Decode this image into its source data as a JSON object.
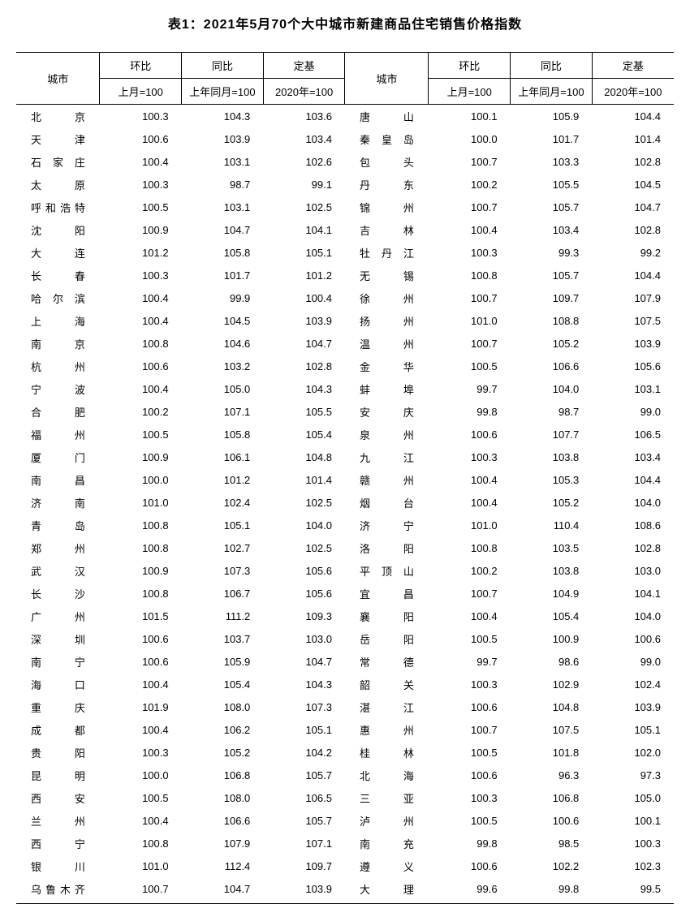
{
  "title": "表1：2021年5月70个大中城市新建商品住宅销售价格指数",
  "headers": {
    "city": "城市",
    "mom": "环比",
    "yoy": "同比",
    "base": "定基",
    "mom_sub": "上月=100",
    "yoy_sub": "上年同月=100",
    "base_sub": "2020年=100"
  },
  "style": {
    "background_color": "#ffffff",
    "text_color": "#000000",
    "border_color": "#000000",
    "title_fontsize": 16,
    "body_fontsize": 13,
    "row_padding_v": 4.5,
    "city_col_width": 92,
    "num_col_width": 90
  },
  "rows": [
    {
      "l_city": "北京",
      "l_mom": "100.3",
      "l_yoy": "104.3",
      "l_base": "103.6",
      "r_city": "唐山",
      "r_mom": "100.1",
      "r_yoy": "105.9",
      "r_base": "104.4"
    },
    {
      "l_city": "天津",
      "l_mom": "100.6",
      "l_yoy": "103.9",
      "l_base": "103.4",
      "r_city": "秦皇岛",
      "r_mom": "100.0",
      "r_yoy": "101.7",
      "r_base": "101.4"
    },
    {
      "l_city": "石家庄",
      "l_mom": "100.4",
      "l_yoy": "103.1",
      "l_base": "102.6",
      "r_city": "包头",
      "r_mom": "100.7",
      "r_yoy": "103.3",
      "r_base": "102.8"
    },
    {
      "l_city": "太原",
      "l_mom": "100.3",
      "l_yoy": "98.7",
      "l_base": "99.1",
      "r_city": "丹东",
      "r_mom": "100.2",
      "r_yoy": "105.5",
      "r_base": "104.5"
    },
    {
      "l_city": "呼和浩特",
      "l_mom": "100.5",
      "l_yoy": "103.1",
      "l_base": "102.5",
      "r_city": "锦州",
      "r_mom": "100.7",
      "r_yoy": "105.7",
      "r_base": "104.7"
    },
    {
      "l_city": "沈阳",
      "l_mom": "100.9",
      "l_yoy": "104.7",
      "l_base": "104.1",
      "r_city": "吉林",
      "r_mom": "100.4",
      "r_yoy": "103.4",
      "r_base": "102.8"
    },
    {
      "l_city": "大连",
      "l_mom": "101.2",
      "l_yoy": "105.8",
      "l_base": "105.1",
      "r_city": "牡丹江",
      "r_mom": "100.3",
      "r_yoy": "99.3",
      "r_base": "99.2"
    },
    {
      "l_city": "长春",
      "l_mom": "100.3",
      "l_yoy": "101.7",
      "l_base": "101.2",
      "r_city": "无锡",
      "r_mom": "100.8",
      "r_yoy": "105.7",
      "r_base": "104.4"
    },
    {
      "l_city": "哈尔滨",
      "l_mom": "100.4",
      "l_yoy": "99.9",
      "l_base": "100.4",
      "r_city": "徐州",
      "r_mom": "100.7",
      "r_yoy": "109.7",
      "r_base": "107.9"
    },
    {
      "l_city": "上海",
      "l_mom": "100.4",
      "l_yoy": "104.5",
      "l_base": "103.9",
      "r_city": "扬州",
      "r_mom": "101.0",
      "r_yoy": "108.8",
      "r_base": "107.5"
    },
    {
      "l_city": "南京",
      "l_mom": "100.8",
      "l_yoy": "104.6",
      "l_base": "104.7",
      "r_city": "温州",
      "r_mom": "100.7",
      "r_yoy": "105.2",
      "r_base": "103.9"
    },
    {
      "l_city": "杭州",
      "l_mom": "100.6",
      "l_yoy": "103.2",
      "l_base": "102.8",
      "r_city": "金华",
      "r_mom": "100.5",
      "r_yoy": "106.6",
      "r_base": "105.6"
    },
    {
      "l_city": "宁波",
      "l_mom": "100.4",
      "l_yoy": "105.0",
      "l_base": "104.3",
      "r_city": "蚌埠",
      "r_mom": "99.7",
      "r_yoy": "104.0",
      "r_base": "103.1"
    },
    {
      "l_city": "合肥",
      "l_mom": "100.2",
      "l_yoy": "107.1",
      "l_base": "105.5",
      "r_city": "安庆",
      "r_mom": "99.8",
      "r_yoy": "98.7",
      "r_base": "99.0"
    },
    {
      "l_city": "福州",
      "l_mom": "100.5",
      "l_yoy": "105.8",
      "l_base": "105.4",
      "r_city": "泉州",
      "r_mom": "100.6",
      "r_yoy": "107.7",
      "r_base": "106.5"
    },
    {
      "l_city": "厦门",
      "l_mom": "100.9",
      "l_yoy": "106.1",
      "l_base": "104.8",
      "r_city": "九江",
      "r_mom": "100.3",
      "r_yoy": "103.8",
      "r_base": "103.4"
    },
    {
      "l_city": "南昌",
      "l_mom": "100.0",
      "l_yoy": "101.2",
      "l_base": "101.4",
      "r_city": "赣州",
      "r_mom": "100.4",
      "r_yoy": "105.3",
      "r_base": "104.4"
    },
    {
      "l_city": "济南",
      "l_mom": "101.0",
      "l_yoy": "102.4",
      "l_base": "102.5",
      "r_city": "烟台",
      "r_mom": "100.4",
      "r_yoy": "105.2",
      "r_base": "104.0"
    },
    {
      "l_city": "青岛",
      "l_mom": "100.8",
      "l_yoy": "105.1",
      "l_base": "104.0",
      "r_city": "济宁",
      "r_mom": "101.0",
      "r_yoy": "110.4",
      "r_base": "108.6"
    },
    {
      "l_city": "郑州",
      "l_mom": "100.8",
      "l_yoy": "102.7",
      "l_base": "102.5",
      "r_city": "洛阳",
      "r_mom": "100.8",
      "r_yoy": "103.5",
      "r_base": "102.8"
    },
    {
      "l_city": "武汉",
      "l_mom": "100.9",
      "l_yoy": "107.3",
      "l_base": "105.6",
      "r_city": "平顶山",
      "r_mom": "100.2",
      "r_yoy": "103.8",
      "r_base": "103.0"
    },
    {
      "l_city": "长沙",
      "l_mom": "100.8",
      "l_yoy": "106.7",
      "l_base": "105.6",
      "r_city": "宜昌",
      "r_mom": "100.7",
      "r_yoy": "104.9",
      "r_base": "104.1"
    },
    {
      "l_city": "广州",
      "l_mom": "101.5",
      "l_yoy": "111.2",
      "l_base": "109.3",
      "r_city": "襄阳",
      "r_mom": "100.4",
      "r_yoy": "105.4",
      "r_base": "104.0"
    },
    {
      "l_city": "深圳",
      "l_mom": "100.6",
      "l_yoy": "103.7",
      "l_base": "103.0",
      "r_city": "岳阳",
      "r_mom": "100.5",
      "r_yoy": "100.9",
      "r_base": "100.6"
    },
    {
      "l_city": "南宁",
      "l_mom": "100.6",
      "l_yoy": "105.9",
      "l_base": "104.7",
      "r_city": "常德",
      "r_mom": "99.7",
      "r_yoy": "98.6",
      "r_base": "99.0"
    },
    {
      "l_city": "海口",
      "l_mom": "100.4",
      "l_yoy": "105.4",
      "l_base": "104.3",
      "r_city": "韶关",
      "r_mom": "100.3",
      "r_yoy": "102.9",
      "r_base": "102.4"
    },
    {
      "l_city": "重庆",
      "l_mom": "101.9",
      "l_yoy": "108.0",
      "l_base": "107.3",
      "r_city": "湛江",
      "r_mom": "100.6",
      "r_yoy": "104.8",
      "r_base": "103.9"
    },
    {
      "l_city": "成都",
      "l_mom": "100.4",
      "l_yoy": "106.2",
      "l_base": "105.1",
      "r_city": "惠州",
      "r_mom": "100.7",
      "r_yoy": "107.5",
      "r_base": "105.1"
    },
    {
      "l_city": "贵阳",
      "l_mom": "100.3",
      "l_yoy": "105.2",
      "l_base": "104.2",
      "r_city": "桂林",
      "r_mom": "100.5",
      "r_yoy": "101.8",
      "r_base": "102.0"
    },
    {
      "l_city": "昆明",
      "l_mom": "100.0",
      "l_yoy": "106.8",
      "l_base": "105.7",
      "r_city": "北海",
      "r_mom": "100.6",
      "r_yoy": "96.3",
      "r_base": "97.3"
    },
    {
      "l_city": "西安",
      "l_mom": "100.5",
      "l_yoy": "108.0",
      "l_base": "106.5",
      "r_city": "三亚",
      "r_mom": "100.3",
      "r_yoy": "106.8",
      "r_base": "105.0"
    },
    {
      "l_city": "兰州",
      "l_mom": "100.4",
      "l_yoy": "106.6",
      "l_base": "105.7",
      "r_city": "泸州",
      "r_mom": "100.5",
      "r_yoy": "100.6",
      "r_base": "100.1"
    },
    {
      "l_city": "西宁",
      "l_mom": "100.8",
      "l_yoy": "107.9",
      "l_base": "107.1",
      "r_city": "南充",
      "r_mom": "99.8",
      "r_yoy": "98.5",
      "r_base": "100.3"
    },
    {
      "l_city": "银川",
      "l_mom": "101.0",
      "l_yoy": "112.4",
      "l_base": "109.7",
      "r_city": "遵义",
      "r_mom": "100.6",
      "r_yoy": "102.2",
      "r_base": "102.3"
    },
    {
      "l_city": "乌鲁木齐",
      "l_mom": "100.7",
      "l_yoy": "104.7",
      "l_base": "103.9",
      "r_city": "大理",
      "r_mom": "99.6",
      "r_yoy": "99.8",
      "r_base": "99.5"
    }
  ]
}
